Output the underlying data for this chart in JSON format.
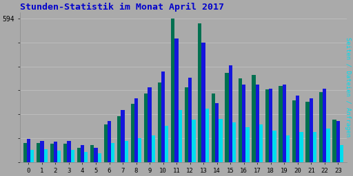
{
  "title": "Stunden-Statistik im Monat April 2017",
  "title_color": "#0000CC",
  "background_color": "#AAAAAA",
  "plot_bg_color": "#AAAAAA",
  "ylabel_right": "Seiten / Dateien / Anfragen",
  "ytick_label": "594",
  "hours": [
    0,
    1,
    2,
    3,
    4,
    5,
    6,
    7,
    8,
    9,
    10,
    11,
    12,
    13,
    14,
    15,
    16,
    17,
    18,
    19,
    20,
    21,
    22,
    23
  ],
  "seiten": [
    80,
    78,
    75,
    76,
    60,
    72,
    155,
    190,
    240,
    285,
    330,
    594,
    310,
    575,
    285,
    370,
    345,
    360,
    300,
    315,
    255,
    250,
    290,
    175
  ],
  "dateien": [
    95,
    88,
    85,
    88,
    70,
    60,
    170,
    215,
    265,
    310,
    375,
    510,
    350,
    495,
    245,
    400,
    320,
    320,
    305,
    320,
    275,
    265,
    305,
    170
  ],
  "anfragen": [
    50,
    55,
    48,
    52,
    42,
    38,
    80,
    88,
    100,
    110,
    150,
    215,
    175,
    220,
    180,
    165,
    145,
    155,
    130,
    110,
    125,
    125,
    138,
    70
  ],
  "color_seiten": "#007050",
  "color_dateien": "#1515DD",
  "color_anfragen": "#00DDEE",
  "bar_width": 0.27,
  "ylim_max": 620,
  "grid_color": "#C0C0C0",
  "grid_lines_y": [
    0,
    99,
    198,
    297,
    396,
    495,
    594
  ],
  "figsize": [
    5.12,
    2.56
  ],
  "dpi": 100
}
